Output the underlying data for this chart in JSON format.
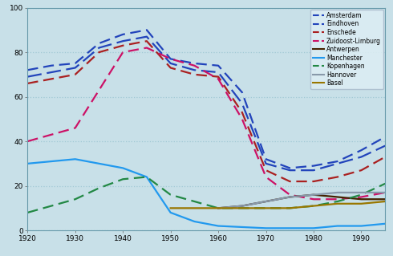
{
  "xlim": [
    1920,
    1995
  ],
  "ylim": [
    0,
    100
  ],
  "yticks": [
    0,
    20,
    40,
    60,
    80,
    100
  ],
  "xticks": [
    1920,
    1930,
    1940,
    1950,
    1960,
    1970,
    1980,
    1990
  ],
  "background_color": "#c8e0e8",
  "grid_color": "#a0c8d4",
  "series": {
    "Amsterdam": {
      "color": "#2244bb",
      "linestyle": "--",
      "linewidth": 1.6,
      "dashes": [
        6,
        3
      ],
      "x": [
        1920,
        1925,
        1930,
        1935,
        1940,
        1945,
        1950,
        1955,
        1960,
        1965,
        1970,
        1975,
        1980,
        1985,
        1990,
        1995
      ],
      "y": [
        72,
        74,
        75,
        84,
        88,
        90,
        77,
        75,
        74,
        62,
        32,
        28,
        29,
        31,
        36,
        42
      ]
    },
    "Eindhoven": {
      "color": "#2244bb",
      "linestyle": "--",
      "linewidth": 1.6,
      "dashes": [
        8,
        3
      ],
      "x": [
        1920,
        1925,
        1930,
        1935,
        1940,
        1945,
        1950,
        1955,
        1960,
        1965,
        1970,
        1975,
        1980,
        1985,
        1990,
        1995
      ],
      "y": [
        69,
        71,
        73,
        82,
        85,
        87,
        75,
        72,
        71,
        57,
        30,
        27,
        27,
        30,
        33,
        38
      ]
    },
    "Enschede": {
      "color": "#aa2020",
      "linestyle": "--",
      "linewidth": 1.6,
      "dashes": [
        6,
        3
      ],
      "x": [
        1920,
        1925,
        1930,
        1935,
        1940,
        1945,
        1950,
        1955,
        1960,
        1965,
        1970,
        1975,
        1980,
        1985,
        1990,
        1995
      ],
      "y": [
        66,
        68,
        70,
        80,
        83,
        85,
        73,
        70,
        69,
        53,
        27,
        22,
        22,
        24,
        27,
        33
      ]
    },
    "Zuidoost-Limburg": {
      "color": "#cc1166",
      "linestyle": "--",
      "linewidth": 1.6,
      "dashes": [
        6,
        3
      ],
      "x": [
        1920,
        1925,
        1930,
        1935,
        1940,
        1945,
        1950,
        1955,
        1960,
        1965,
        1970,
        1975,
        1980,
        1985,
        1990,
        1995
      ],
      "y": [
        40,
        43,
        46,
        63,
        80,
        82,
        77,
        74,
        68,
        50,
        24,
        16,
        14,
        14,
        15,
        17
      ]
    },
    "Antwerpen": {
      "color": "#442200",
      "linestyle": "-",
      "linewidth": 1.6,
      "dashes": null,
      "x": [
        1960,
        1965,
        1970,
        1975,
        1980,
        1985,
        1990,
        1995
      ],
      "y": [
        10,
        11,
        13,
        15,
        16,
        15,
        14,
        14
      ]
    },
    "Manchester": {
      "color": "#2299ee",
      "linestyle": "-",
      "linewidth": 1.6,
      "dashes": null,
      "x": [
        1920,
        1925,
        1930,
        1935,
        1940,
        1945,
        1950,
        1955,
        1960,
        1965,
        1970,
        1975,
        1980,
        1985,
        1990,
        1995
      ],
      "y": [
        30,
        31,
        32,
        30,
        28,
        24,
        8,
        4,
        2,
        1.5,
        1,
        1,
        1,
        2,
        2,
        3
      ]
    },
    "Kopenhagen": {
      "color": "#228844",
      "linestyle": "--",
      "linewidth": 1.6,
      "dashes": [
        6,
        3
      ],
      "x": [
        1920,
        1925,
        1930,
        1935,
        1940,
        1945,
        1950,
        1955,
        1960,
        1965,
        1970,
        1975,
        1980,
        1985,
        1990,
        1995
      ],
      "y": [
        8,
        11,
        14,
        19,
        23,
        24,
        16,
        13,
        10,
        10,
        10,
        10,
        11,
        13,
        16,
        21
      ]
    },
    "Hannover": {
      "color": "#8899aa",
      "linestyle": "-",
      "linewidth": 1.6,
      "dashes": null,
      "x": [
        1960,
        1965,
        1970,
        1975,
        1980,
        1985,
        1990,
        1995
      ],
      "y": [
        10,
        11,
        13,
        15,
        16,
        17,
        17,
        17
      ]
    },
    "Basel": {
      "color": "#997700",
      "linestyle": "-",
      "linewidth": 1.6,
      "dashes": null,
      "x": [
        1950,
        1955,
        1960,
        1965,
        1970,
        1975,
        1980,
        1985,
        1990,
        1995
      ],
      "y": [
        10,
        10,
        10,
        10,
        10,
        10,
        11,
        12,
        12,
        13
      ]
    }
  },
  "legend_entries": [
    "Amsterdam",
    "Eindhoven",
    "Enschede",
    "Zuidoost-Limburg",
    "Antwerpen",
    "Manchester",
    "Kopenhagen",
    "Hannover",
    "Basel"
  ],
  "legend_colors": [
    "#2244bb",
    "#2244bb",
    "#aa2020",
    "#cc1166",
    "#442200",
    "#2299ee",
    "#228844",
    "#8899aa",
    "#997700"
  ],
  "legend_linestyles": [
    "--",
    "--",
    "--",
    "--",
    "-",
    "-",
    "--",
    "-",
    "-"
  ]
}
